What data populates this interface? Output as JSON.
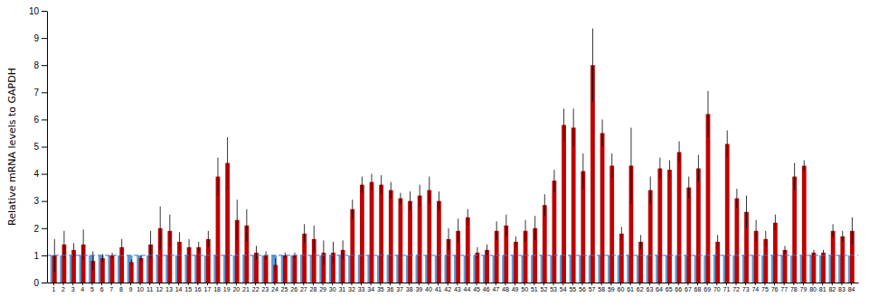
{
  "chart_data": {
    "type": "bar",
    "y_label": "Relative mRNA levels to GAPDH",
    "categories": [
      "1",
      "2",
      "3",
      "4",
      "5",
      "6",
      "7",
      "8",
      "9",
      "10",
      "11",
      "12",
      "13",
      "14",
      "15",
      "16",
      "17",
      "18",
      "19",
      "20",
      "21",
      "22",
      "23",
      "24",
      "25",
      "26",
      "27",
      "28",
      "29",
      "30",
      "31",
      "32",
      "33",
      "34",
      "35",
      "36",
      "37",
      "38",
      "39",
      "40",
      "41",
      "42",
      "43",
      "44",
      "45",
      "46",
      "47",
      "48",
      "49",
      "50",
      "51",
      "52",
      "53",
      "54",
      "55",
      "56",
      "57",
      "58",
      "59",
      "60",
      "61",
      "62",
      "63",
      "64",
      "65",
      "66",
      "67",
      "68",
      "69",
      "70",
      "71",
      "72",
      "73",
      "74",
      "75",
      "76",
      "77",
      "78",
      "79",
      "80",
      "81",
      "82",
      "83",
      "84"
    ],
    "series": [
      {
        "color": "#5b9bd5",
        "values": [
          1,
          1,
          1,
          1,
          1,
          1,
          1,
          1,
          1,
          1,
          1,
          1,
          1,
          1,
          1,
          1,
          1,
          1,
          1,
          1,
          1,
          1,
          1,
          1,
          1,
          1,
          1,
          1,
          1,
          1,
          1,
          1,
          1,
          1,
          1,
          1,
          1,
          1,
          1,
          1,
          1,
          1,
          1,
          1,
          1,
          1,
          1,
          1,
          1,
          1,
          1,
          1,
          1,
          1,
          1,
          1,
          1,
          1,
          1,
          1,
          1,
          1,
          1,
          1,
          1,
          1,
          1,
          1,
          1,
          1,
          1,
          1,
          1,
          1,
          1,
          1,
          1,
          1,
          1,
          1,
          1,
          1,
          1,
          1
        ]
      },
      {
        "color": "#c00000",
        "values": [
          1.0,
          1.4,
          1.2,
          1.4,
          0.8,
          0.9,
          1.0,
          1.3,
          0.75,
          0.9,
          1.4,
          2.0,
          1.9,
          1.5,
          1.3,
          1.3,
          1.6,
          3.9,
          4.4,
          2.3,
          2.1,
          1.1,
          1.0,
          0.65,
          1.0,
          1.0,
          1.8,
          1.6,
          1.1,
          1.1,
          1.2,
          2.7,
          3.6,
          3.7,
          3.6,
          3.4,
          3.1,
          3.0,
          3.2,
          3.4,
          3.0,
          1.6,
          1.9,
          2.4,
          1.1,
          1.2,
          1.9,
          2.1,
          1.5,
          1.9,
          2.0,
          2.85,
          3.75,
          5.8,
          5.7,
          4.1,
          8.0,
          5.5,
          4.3,
          1.8,
          4.3,
          1.5,
          3.4,
          4.2,
          4.15,
          4.8,
          3.5,
          4.2,
          6.2,
          1.5,
          5.1,
          3.1,
          2.6,
          1.9,
          1.6,
          2.2,
          1.2,
          3.9,
          4.3,
          1.1,
          1.1,
          1.9,
          1.7,
          1.9
        ],
        "errors": [
          0.6,
          0.5,
          0.25,
          0.55,
          0.35,
          0.15,
          0.1,
          0.3,
          0.1,
          0.1,
          0.5,
          0.8,
          0.6,
          0.35,
          0.3,
          0.2,
          0.3,
          0.7,
          0.95,
          0.75,
          0.6,
          0.25,
          0.15,
          0.25,
          0.1,
          0.1,
          0.35,
          0.5,
          0.45,
          0.4,
          0.35,
          0.35,
          0.3,
          0.3,
          0.35,
          0.3,
          0.2,
          0.35,
          0.4,
          0.5,
          0.35,
          0.4,
          0.45,
          0.3,
          0.2,
          0.2,
          0.35,
          0.4,
          0.2,
          0.4,
          0.45,
          0.4,
          0.4,
          0.6,
          0.7,
          0.65,
          1.35,
          0.5,
          0.45,
          0.25,
          1.4,
          0.25,
          0.5,
          0.4,
          0.35,
          0.4,
          0.4,
          0.5,
          0.85,
          0.25,
          0.5,
          0.35,
          0.6,
          0.4,
          0.3,
          0.3,
          0.15,
          0.5,
          0.2,
          0.1,
          0.1,
          0.25,
          0.2,
          0.5
        ]
      }
    ],
    "reference_line": {
      "value": 1.0,
      "color": "#4472c4",
      "line_style": "dashed"
    },
    "ylim": [
      0,
      10
    ],
    "yticks": [
      0,
      1,
      2,
      3,
      4,
      5,
      6,
      7,
      8,
      9,
      10
    ]
  }
}
